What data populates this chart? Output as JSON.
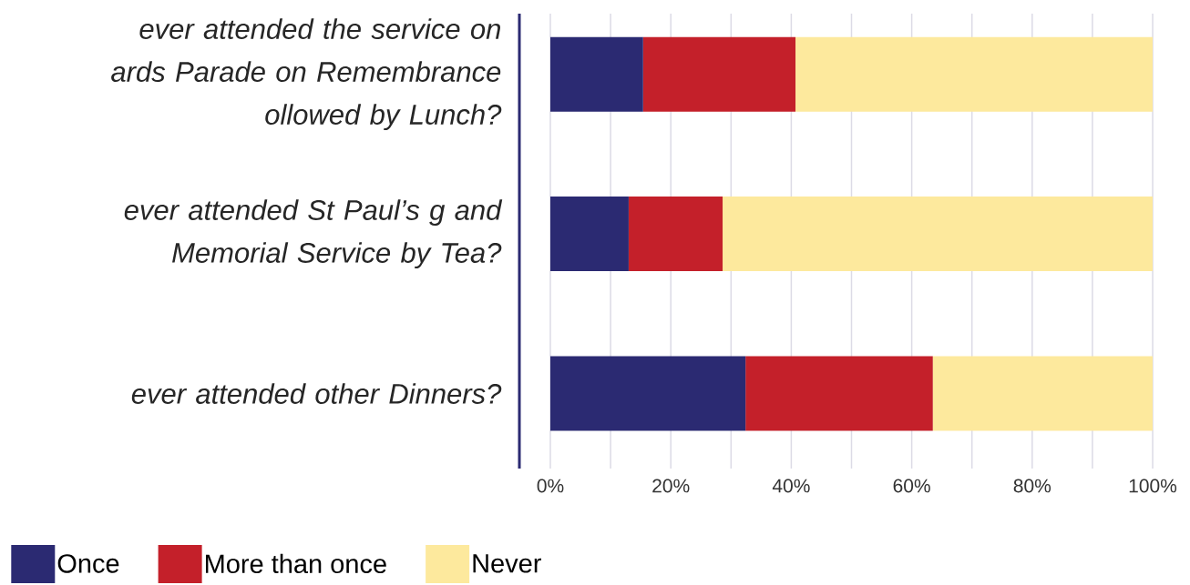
{
  "chart_data": {
    "type": "bar",
    "orientation": "horizontal",
    "stacked": true,
    "categories": [
      "ever attended the service on ards Parade on Remembrance ollowed by Lunch?",
      "ever attended St Paul’s g and Memorial Service by Tea?",
      "ever attended other Dinners?"
    ],
    "series": [
      {
        "name": "Once",
        "color": "#2b2a72",
        "values": [
          15.4,
          13.0,
          32.4
        ]
      },
      {
        "name": "More than once",
        "color": "#c4202a",
        "values": [
          25.3,
          15.6,
          31.1
        ]
      },
      {
        "name": "Never",
        "color": "#fde99d",
        "values": [
          59.3,
          71.4,
          36.5
        ]
      }
    ],
    "xlim": [
      0,
      100
    ],
    "xticks": [
      {
        "value": 0,
        "label": "0%"
      },
      {
        "value": 10,
        "label": null
      },
      {
        "value": 20,
        "label": "20%"
      },
      {
        "value": 30,
        "label": null
      },
      {
        "value": 40,
        "label": "40%"
      },
      {
        "value": 50,
        "label": null
      },
      {
        "value": 60,
        "label": "60%"
      },
      {
        "value": 70,
        "label": null
      },
      {
        "value": 80,
        "label": "80%"
      },
      {
        "value": 90,
        "label": null
      },
      {
        "value": 100,
        "label": "100%"
      }
    ],
    "grid": "x",
    "legend": "bottom left"
  }
}
